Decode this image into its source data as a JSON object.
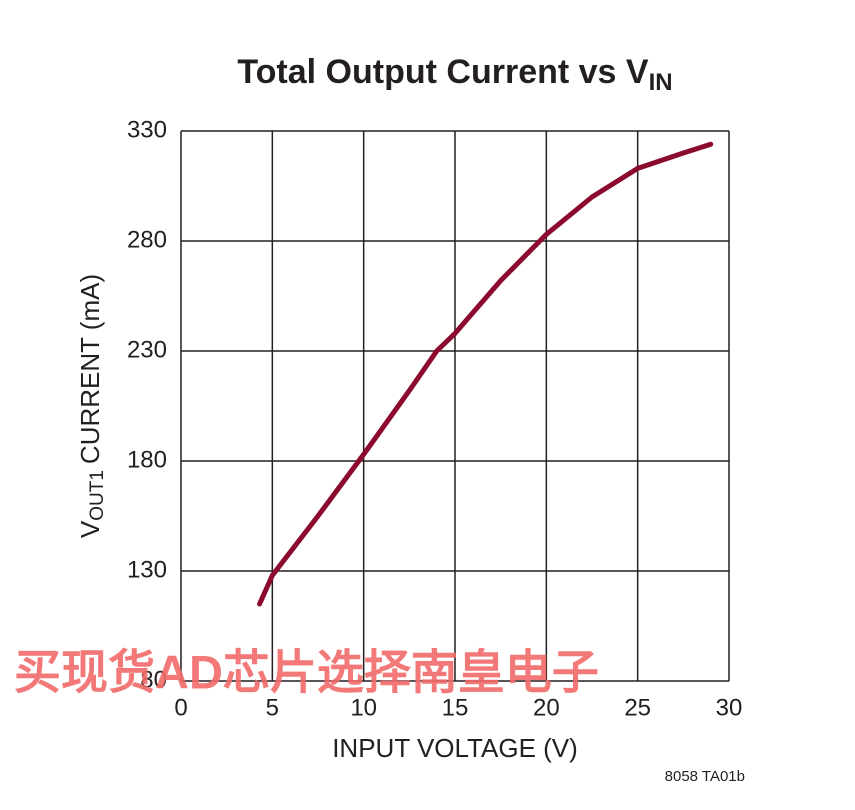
{
  "chart_data": {
    "type": "line",
    "title": {
      "main": "Total Output Current vs V",
      "sub": "IN"
    },
    "xlabel": "INPUT VOLTAGE (V)",
    "ylabel": {
      "main": "V",
      "sub": "OUT1",
      "rest": "CURRENT (mA)"
    },
    "x": [
      4.3,
      5,
      7.5,
      10,
      12.5,
      14,
      15,
      17.5,
      20,
      22.5,
      25,
      27.5,
      29
    ],
    "series": [
      {
        "name": "VOUT1 current",
        "color": "#8b0a2e",
        "values": [
          115,
          128,
          155,
          183,
          212,
          230,
          238,
          262,
          283,
          300,
          313,
          320,
          324
        ]
      }
    ],
    "xlim": [
      0,
      30
    ],
    "xticks": [
      0,
      5,
      10,
      15,
      20,
      25,
      30
    ],
    "ylim": [
      80,
      330
    ],
    "yticks": [
      80,
      130,
      180,
      230,
      280,
      330
    ],
    "grid": true,
    "note": "8058 TA01b",
    "watermark": "买现货AD芯片选择南皇电子"
  }
}
